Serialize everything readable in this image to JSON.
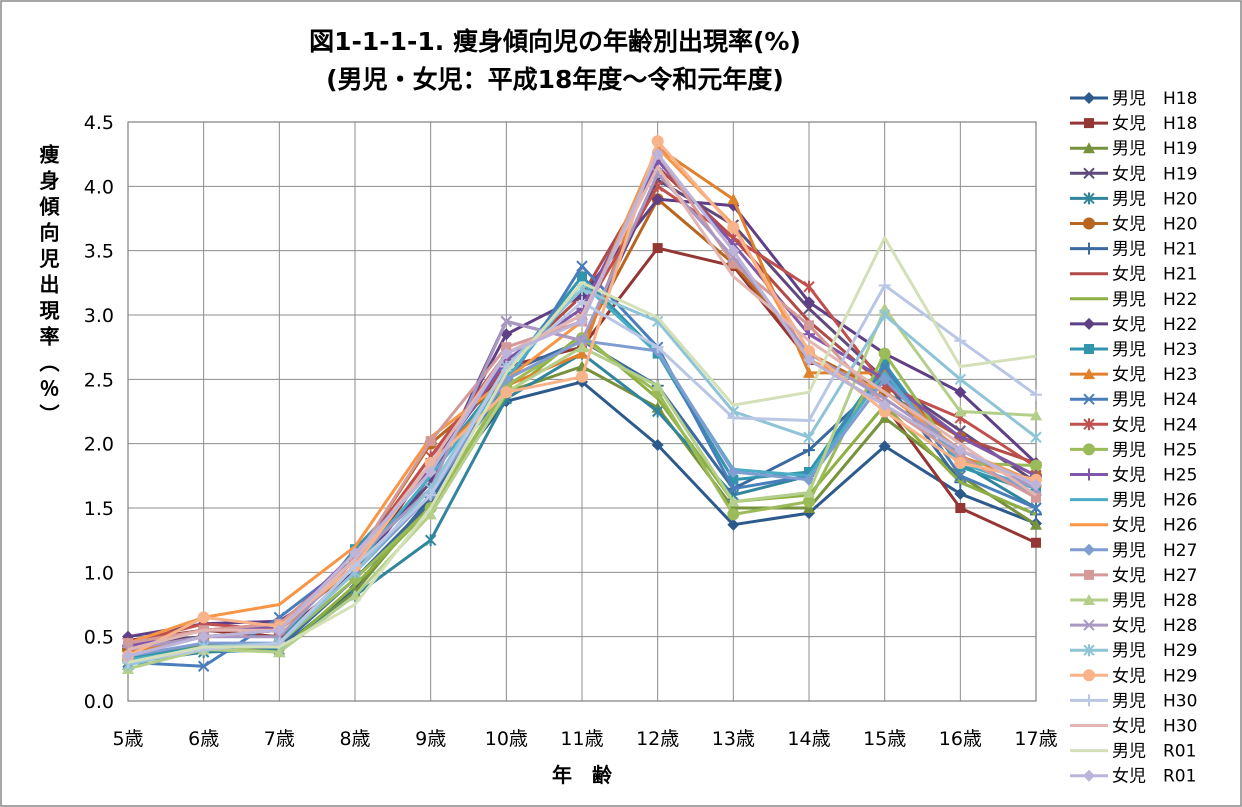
{
  "chart_data": {
    "type": "line",
    "title": "図1-1-1-1. 痩身傾向児の年齢別出現率(%)",
    "subtitle": "(男児・女児：平成18年度～令和元年度)",
    "xlabel": "年　齢",
    "ylabel": "痩身傾向児出現率（％）",
    "ylim": [
      0,
      4.5
    ],
    "yticks": [
      "0.0",
      "0.5",
      "1.0",
      "1.5",
      "2.0",
      "2.5",
      "3.0",
      "3.5",
      "4.0",
      "4.5"
    ],
    "grid": true,
    "legend_position": "right",
    "categories": [
      "5歳",
      "6歳",
      "7歳",
      "8歳",
      "9歳",
      "10歳",
      "11歳",
      "12歳",
      "13歳",
      "14歳",
      "15歳",
      "16歳",
      "17歳"
    ],
    "series": [
      {
        "name": "男児　H18",
        "color": "#2C5A8C",
        "marker": "diamond",
        "values": [
          0.35,
          0.42,
          0.4,
          0.88,
          1.58,
          2.33,
          2.48,
          1.99,
          1.37,
          1.46,
          1.98,
          1.61,
          1.38
        ]
      },
      {
        "name": "女児　H18",
        "color": "#943634",
        "marker": "square",
        "values": [
          0.47,
          0.55,
          0.5,
          1.0,
          1.85,
          2.6,
          2.75,
          3.52,
          3.38,
          2.65,
          2.3,
          1.5,
          1.23
        ]
      },
      {
        "name": "男児　H19",
        "color": "#76923C",
        "marker": "triangle",
        "values": [
          0.28,
          0.45,
          0.38,
          0.85,
          1.55,
          2.4,
          2.6,
          2.28,
          1.5,
          1.5,
          2.2,
          1.75,
          1.37
        ]
      },
      {
        "name": "女児　H19",
        "color": "#604A7B",
        "marker": "x",
        "values": [
          0.45,
          0.5,
          0.55,
          1.05,
          1.7,
          2.95,
          2.8,
          4.05,
          3.7,
          3.05,
          2.5,
          2.1,
          1.7
        ]
      },
      {
        "name": "男児　H20",
        "color": "#31859C",
        "marker": "asterisk",
        "values": [
          0.3,
          0.38,
          0.4,
          0.82,
          1.25,
          2.35,
          2.7,
          2.25,
          1.6,
          1.75,
          2.55,
          1.85,
          1.5
        ]
      },
      {
        "name": "女児　H20",
        "color": "#B7651F",
        "marker": "circle",
        "values": [
          0.4,
          0.5,
          0.55,
          1.1,
          2.0,
          2.5,
          2.8,
          3.9,
          3.4,
          2.7,
          2.4,
          2.05,
          1.75
        ]
      },
      {
        "name": "男児　H21",
        "color": "#3B6A9E",
        "marker": "plus",
        "values": [
          0.3,
          0.4,
          0.42,
          0.95,
          1.55,
          2.55,
          2.8,
          2.45,
          1.65,
          1.95,
          2.5,
          1.7,
          1.45
        ]
      },
      {
        "name": "女児　H21",
        "color": "#B24A47",
        "marker": "none",
        "values": [
          0.42,
          0.55,
          0.6,
          1.1,
          1.9,
          2.6,
          3.15,
          4.15,
          3.6,
          2.95,
          2.45,
          2.05,
          1.85
        ]
      },
      {
        "name": "男児　H22",
        "color": "#8EB043",
        "marker": "none",
        "values": [
          0.3,
          0.42,
          0.38,
          0.9,
          1.5,
          2.38,
          2.85,
          2.35,
          1.55,
          1.6,
          2.3,
          1.7,
          1.45
        ]
      },
      {
        "name": "女児　H22",
        "color": "#5F3F85",
        "marker": "diamond",
        "values": [
          0.5,
          0.6,
          0.62,
          1.0,
          1.75,
          2.85,
          3.15,
          3.9,
          3.85,
          3.1,
          2.7,
          2.4,
          1.85
        ]
      },
      {
        "name": "男児　H23",
        "color": "#3196AC",
        "marker": "square",
        "values": [
          0.33,
          0.42,
          0.45,
          1.18,
          1.8,
          2.55,
          3.3,
          2.7,
          1.72,
          1.78,
          2.62,
          1.82,
          1.62
        ]
      },
      {
        "name": "女児　H23",
        "color": "#E0812C",
        "marker": "triangle",
        "values": [
          0.38,
          0.5,
          0.55,
          1.05,
          1.85,
          2.45,
          2.7,
          4.3,
          3.9,
          2.55,
          2.55,
          1.9,
          1.7
        ]
      },
      {
        "name": "男児　H24",
        "color": "#4A7EBB",
        "marker": "x",
        "values": [
          0.3,
          0.27,
          0.65,
          1.1,
          1.65,
          2.45,
          3.38,
          2.75,
          1.65,
          1.75,
          2.6,
          1.75,
          1.5
        ]
      },
      {
        "name": "女児　H24",
        "color": "#C0504D",
        "marker": "asterisk",
        "values": [
          0.45,
          0.6,
          0.55,
          1.1,
          1.9,
          2.7,
          3.0,
          4.0,
          3.6,
          3.22,
          2.45,
          2.2,
          1.82
        ]
      },
      {
        "name": "男児　H25",
        "color": "#9BBB59",
        "marker": "circle",
        "values": [
          0.32,
          0.4,
          0.45,
          0.95,
          1.5,
          2.45,
          2.82,
          2.4,
          1.45,
          1.55,
          2.7,
          1.85,
          1.83
        ]
      },
      {
        "name": "女児　H25",
        "color": "#7F56AA",
        "marker": "plus",
        "values": [
          0.43,
          0.55,
          0.58,
          1.15,
          1.8,
          2.65,
          3.05,
          4.2,
          3.55,
          2.85,
          2.5,
          2.05,
          1.75
        ]
      },
      {
        "name": "男児　H26",
        "color": "#4BACC6",
        "marker": "none",
        "values": [
          0.32,
          0.4,
          0.45,
          1.05,
          1.75,
          2.5,
          3.25,
          2.7,
          1.8,
          1.75,
          2.55,
          1.85,
          1.65
        ]
      },
      {
        "name": "女児　H26",
        "color": "#F79646",
        "marker": "none",
        "values": [
          0.45,
          0.65,
          0.75,
          1.2,
          2.05,
          2.5,
          2.95,
          4.3,
          3.7,
          2.65,
          2.4,
          1.95,
          1.7
        ]
      },
      {
        "name": "男児　H27",
        "color": "#7F9DD1",
        "marker": "diamond",
        "values": [
          0.35,
          0.45,
          0.45,
          1.0,
          1.6,
          2.5,
          2.8,
          2.72,
          1.78,
          1.72,
          2.5,
          1.9,
          1.6
        ]
      },
      {
        "name": "女児　H27",
        "color": "#D49A9A",
        "marker": "square",
        "values": [
          0.45,
          0.55,
          0.6,
          1.1,
          2.02,
          2.75,
          2.95,
          4.25,
          3.4,
          2.92,
          2.3,
          1.9,
          1.58
        ]
      },
      {
        "name": "男児　H28",
        "color": "#B4CF8B",
        "marker": "triangle",
        "values": [
          0.25,
          0.4,
          0.38,
          0.82,
          1.45,
          2.4,
          2.75,
          2.45,
          1.55,
          1.62,
          3.05,
          2.25,
          2.22
        ]
      },
      {
        "name": "女児　H28",
        "color": "#A898C2",
        "marker": "x",
        "values": [
          0.4,
          0.5,
          0.5,
          1.1,
          1.65,
          2.95,
          2.8,
          4.1,
          3.45,
          2.7,
          2.35,
          1.95,
          1.65
        ]
      },
      {
        "name": "男児　H29",
        "color": "#8FC4D6",
        "marker": "asterisk",
        "values": [
          0.28,
          0.42,
          0.45,
          1.0,
          1.65,
          2.6,
          3.2,
          2.95,
          2.25,
          2.05,
          3.0,
          2.5,
          2.05
        ]
      },
      {
        "name": "女児　H29",
        "color": "#F9B38A",
        "marker": "circle",
        "values": [
          0.35,
          0.65,
          0.58,
          1.05,
          1.85,
          2.4,
          2.52,
          4.35,
          3.68,
          2.72,
          2.25,
          1.85,
          1.72
        ]
      },
      {
        "name": "男児　H30",
        "color": "#B9C7E4",
        "marker": "plus",
        "values": [
          0.3,
          0.4,
          0.45,
          1.05,
          1.6,
          2.6,
          3.1,
          2.75,
          2.2,
          2.18,
          3.23,
          2.8,
          2.38
        ]
      },
      {
        "name": "女児　H30",
        "color": "#E2B6B2",
        "marker": "none",
        "values": [
          0.4,
          0.55,
          0.55,
          1.1,
          1.85,
          2.7,
          3.0,
          4.15,
          3.3,
          2.8,
          2.4,
          2.0,
          1.6
        ]
      },
      {
        "name": "男児　R01",
        "color": "#D3E0B8",
        "marker": "none",
        "values": [
          0.3,
          0.42,
          0.42,
          0.75,
          1.5,
          2.55,
          3.25,
          2.98,
          2.3,
          2.4,
          3.6,
          2.6,
          2.68
        ]
      },
      {
        "name": "女児　R01",
        "color": "#BDB4D9",
        "marker": "diamond",
        "values": [
          0.35,
          0.5,
          0.55,
          1.15,
          1.78,
          2.7,
          2.95,
          4.25,
          3.5,
          2.65,
          2.3,
          1.95,
          1.68
        ]
      }
    ]
  }
}
